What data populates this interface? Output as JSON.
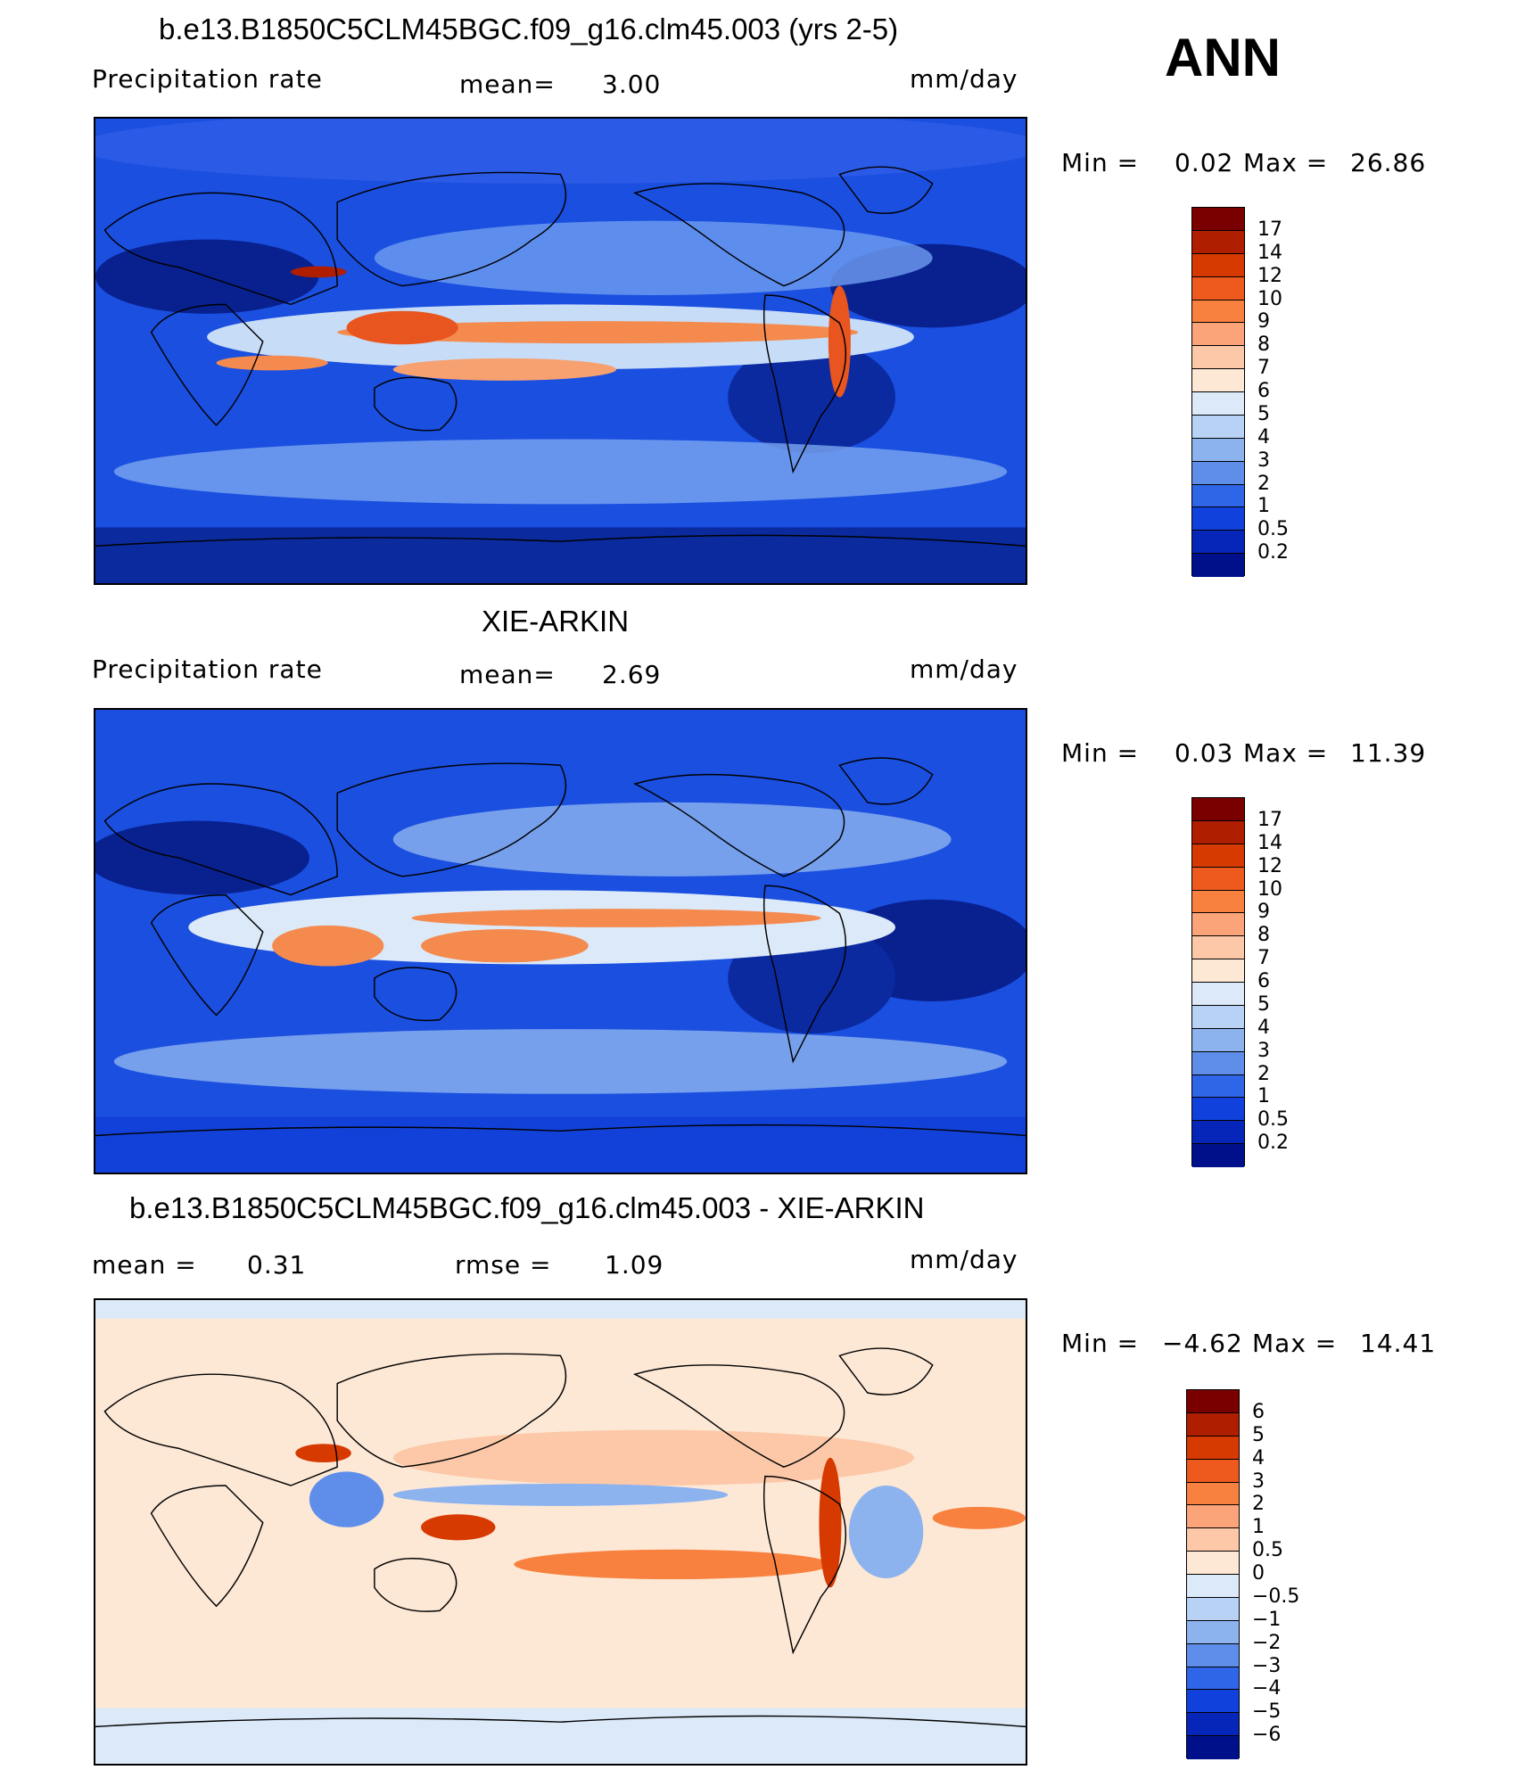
{
  "header": {
    "season": "ANN"
  },
  "panels": [
    {
      "title": "b.e13.B1850C5CLM45BGC.f09_g16.clm45.003 (yrs 2-5)",
      "left_label": "Precipitation  rate",
      "stat1_label": "mean=",
      "stat1_value": "3.00",
      "units": "mm/day",
      "minmax": {
        "min_label": "Min  =",
        "min_value": "0.02",
        "max_label": "Max  =",
        "max_value": "26.86"
      },
      "scale": "abs"
    },
    {
      "title": "XIE-ARKIN",
      "left_label": "Precipitation  rate",
      "stat1_label": "mean=",
      "stat1_value": "2.69",
      "units": "mm/day",
      "minmax": {
        "min_label": "Min  =",
        "min_value": "0.03",
        "max_label": "Max  =",
        "max_value": "11.39"
      },
      "scale": "abs"
    },
    {
      "title": "b.e13.B1850C5CLM45BGC.f09_g16.clm45.003 - XIE-ARKIN",
      "left_label": "mean  =",
      "left_value": "0.31",
      "stat1_label": "rmse  =",
      "stat1_value": "1.09",
      "units": "mm/day",
      "minmax": {
        "min_label": "Min  =",
        "min_value": "−4.62",
        "max_label": "Max  =",
        "max_value": "14.41"
      },
      "scale": "diff"
    }
  ],
  "colorbars": {
    "abs": {
      "labels": [
        "17",
        "14",
        "12",
        "10",
        "9",
        "8",
        "7",
        "6",
        "5",
        "4",
        "3",
        "2",
        "1",
        "0.5",
        "0.2"
      ],
      "colors": [
        "#7a0000",
        "#b01e00",
        "#d63a00",
        "#ee5a1e",
        "#f8813f",
        "#fba47a",
        "#fcc8a8",
        "#fde8d6",
        "#dbe9f8",
        "#b8d2f5",
        "#8db3ef",
        "#5f8eea",
        "#2f66e8",
        "#1041dd",
        "#0526b8",
        "#00108a"
      ]
    },
    "diff": {
      "labels": [
        "6",
        "5",
        "4",
        "3",
        "2",
        "1",
        "0.5",
        "0",
        "−0.5",
        "−1",
        "−2",
        "−3",
        "−4",
        "−5",
        "−6"
      ],
      "colors": [
        "#7a0000",
        "#b01e00",
        "#d63a00",
        "#ee5a1e",
        "#f8813f",
        "#fba47a",
        "#fcc8a8",
        "#fde8d6",
        "#dbe9f8",
        "#b8d2f5",
        "#8db3ef",
        "#5f8eea",
        "#2f66e8",
        "#1041dd",
        "#0526b8",
        "#00108a"
      ]
    }
  }
}
